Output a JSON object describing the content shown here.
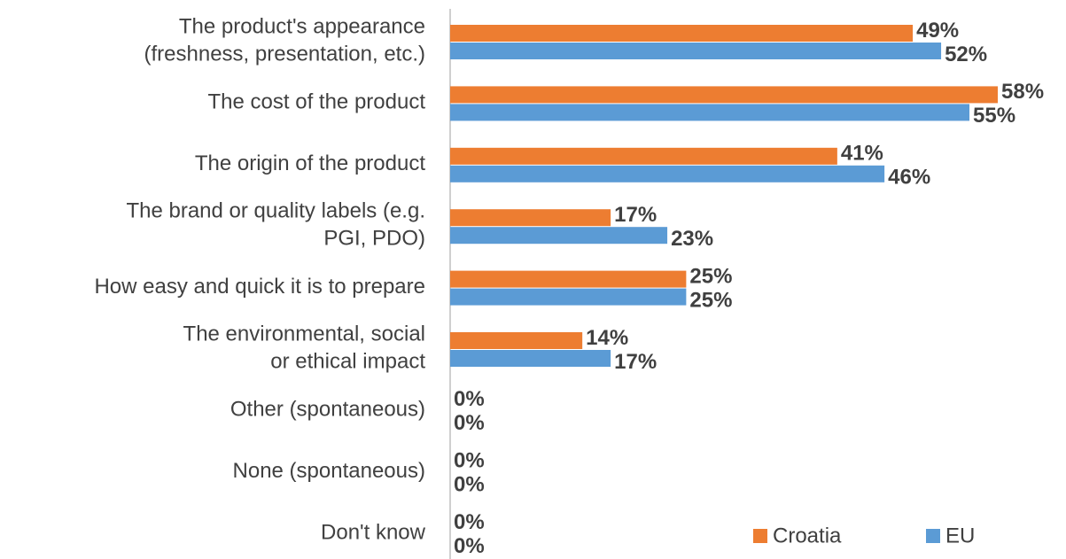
{
  "chart_data": {
    "type": "bar",
    "orientation": "horizontal",
    "categories": [
      "The product's appearance\n(freshness, presentation, etc.)",
      "The cost of the product",
      "The origin of the product",
      "The brand or quality labels (e.g.\nPGI, PDO)",
      "How easy and quick it is to prepare",
      "The environmental, social\nor ethical impact",
      "Other (spontaneous)",
      "None (spontaneous)",
      "Don't know"
    ],
    "series": [
      {
        "name": "Croatia",
        "color": "#ed7d31",
        "label_color": "#ed7d31",
        "values": [
          49,
          58,
          41,
          17,
          25,
          14,
          0,
          0,
          0
        ],
        "value_labels": [
          "49%",
          "58%",
          "41%",
          "17%",
          "25%",
          "14%",
          "0%",
          "0%",
          "0%"
        ]
      },
      {
        "name": "EU",
        "color": "#5b9bd5",
        "label_color": "#4472c4",
        "values": [
          52,
          55,
          46,
          23,
          25,
          17,
          0,
          0,
          0
        ],
        "value_labels": [
          "52%",
          "55%",
          "46%",
          "23%",
          "25%",
          "17%",
          "0%",
          "0%",
          "0%"
        ]
      }
    ],
    "legend": "bottom-right"
  }
}
